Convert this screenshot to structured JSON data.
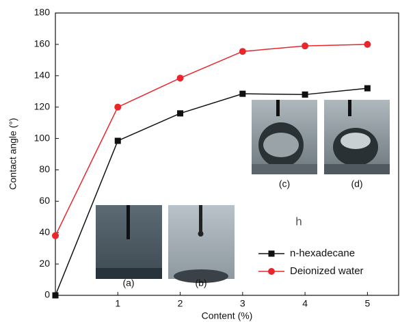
{
  "chart_data": {
    "type": "line",
    "x_label": "Content (%)",
    "y_label": "Contact angle (°)",
    "x": [
      0,
      1,
      2,
      3,
      4,
      5
    ],
    "series": [
      {
        "name": "n-hexadecane",
        "color": "#111111",
        "marker": "square",
        "values": [
          0,
          98.5,
          116,
          128.5,
          128,
          132
        ]
      },
      {
        "name": "Deionized water",
        "color": "#e8262b",
        "marker": "circle",
        "values": [
          38,
          120,
          138.5,
          155.5,
          159,
          160
        ]
      }
    ],
    "xlim": [
      0,
      5.5
    ],
    "xticks": [
      1,
      2,
      3,
      4,
      5
    ],
    "ylim": [
      0,
      180
    ],
    "yticks": [
      0,
      20,
      40,
      60,
      80,
      100,
      120,
      140,
      160,
      180
    ],
    "insets": [
      "(a)",
      "(b)",
      "(c)",
      "(d)"
    ],
    "annotation": "h"
  }
}
